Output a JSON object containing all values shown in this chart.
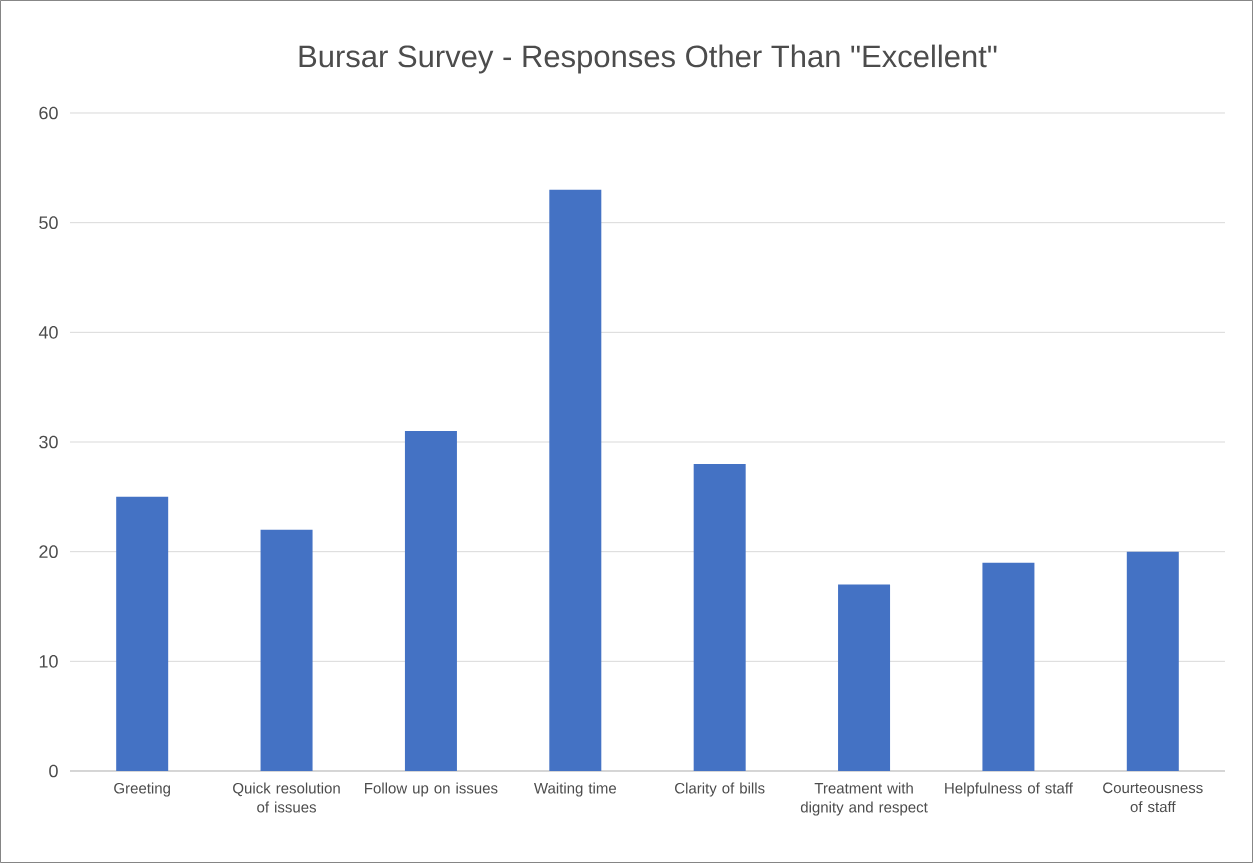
{
  "chart_data": {
    "type": "bar",
    "title": "Bursar Survey - Responses Other Than \"Excellent\"",
    "categories": [
      "Greeting",
      "Quick resolution of issues",
      "Follow up on issues",
      "Waiting time",
      "Clarity of bills",
      "Treatment with dignity and respect",
      "Helpfulness of staff",
      "Courteousness of staff"
    ],
    "values": [
      25,
      22,
      31,
      53,
      28,
      17,
      19,
      20
    ],
    "color": "#4472c4",
    "ylim": [
      0,
      60
    ],
    "yticks": [
      0,
      10,
      20,
      30,
      40,
      50,
      60
    ],
    "grid": "y"
  }
}
